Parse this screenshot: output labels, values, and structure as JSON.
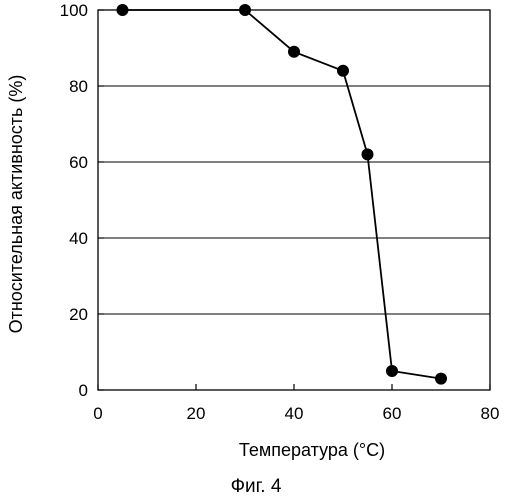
{
  "chart_data": {
    "type": "line",
    "xlabel": "Температура (°C)",
    "ylabel": "Относительная активность (%)",
    "caption": "Фиг. 4",
    "xlim": [
      0,
      80
    ],
    "ylim": [
      0,
      100
    ],
    "xticks": [
      0,
      20,
      40,
      60,
      80
    ],
    "yticks": [
      0,
      20,
      40,
      60,
      80,
      100
    ],
    "grid": "horizontal",
    "legend": "none",
    "series": [
      {
        "x": [
          5,
          30,
          40,
          50,
          55,
          60,
          70
        ],
        "y": [
          100,
          100,
          89,
          84,
          62,
          5,
          3
        ]
      }
    ],
    "colors": {
      "line": "#000000",
      "marker": "#000000",
      "grid": "#000000"
    }
  }
}
